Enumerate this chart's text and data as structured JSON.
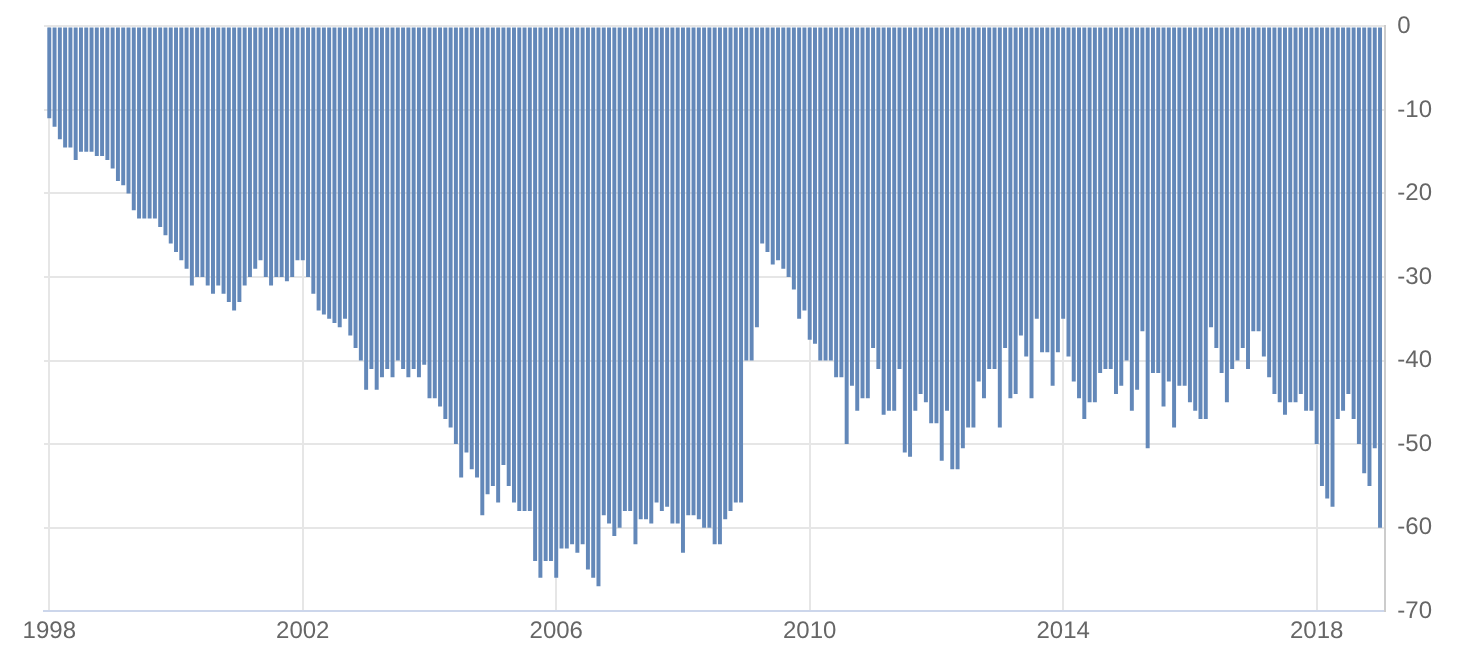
{
  "chart_data": {
    "type": "bar",
    "color": "#6388b9",
    "x": [
      "1998-01",
      "1998-02",
      "1998-03",
      "1998-04",
      "1998-05",
      "1998-06",
      "1998-07",
      "1998-08",
      "1998-09",
      "1998-10",
      "1998-11",
      "1998-12",
      "1999-01",
      "1999-02",
      "1999-03",
      "1999-04",
      "1999-05",
      "1999-06",
      "1999-07",
      "1999-08",
      "1999-09",
      "1999-10",
      "1999-11",
      "1999-12",
      "2000-01",
      "2000-02",
      "2000-03",
      "2000-04",
      "2000-05",
      "2000-06",
      "2000-07",
      "2000-08",
      "2000-09",
      "2000-10",
      "2000-11",
      "2000-12",
      "2001-01",
      "2001-02",
      "2001-03",
      "2001-04",
      "2001-05",
      "2001-06",
      "2001-07",
      "2001-08",
      "2001-09",
      "2001-10",
      "2001-11",
      "2001-12",
      "2002-01",
      "2002-02",
      "2002-03",
      "2002-04",
      "2002-05",
      "2002-06",
      "2002-07",
      "2002-08",
      "2002-09",
      "2002-10",
      "2002-11",
      "2002-12",
      "2003-01",
      "2003-02",
      "2003-03",
      "2003-04",
      "2003-05",
      "2003-06",
      "2003-07",
      "2003-08",
      "2003-09",
      "2003-10",
      "2003-11",
      "2003-12",
      "2004-01",
      "2004-02",
      "2004-03",
      "2004-04",
      "2004-05",
      "2004-06",
      "2004-07",
      "2004-08",
      "2004-09",
      "2004-10",
      "2004-11",
      "2004-12",
      "2005-01",
      "2005-02",
      "2005-03",
      "2005-04",
      "2005-05",
      "2005-06",
      "2005-07",
      "2005-08",
      "2005-09",
      "2005-10",
      "2005-11",
      "2005-12",
      "2006-01",
      "2006-02",
      "2006-03",
      "2006-04",
      "2006-05",
      "2006-06",
      "2006-07",
      "2006-08",
      "2006-09",
      "2006-10",
      "2006-11",
      "2006-12",
      "2007-01",
      "2007-02",
      "2007-03",
      "2007-04",
      "2007-05",
      "2007-06",
      "2007-07",
      "2007-08",
      "2007-09",
      "2007-10",
      "2007-11",
      "2007-12",
      "2008-01",
      "2008-02",
      "2008-03",
      "2008-04",
      "2008-05",
      "2008-06",
      "2008-07",
      "2008-08",
      "2008-09",
      "2008-10",
      "2008-11",
      "2008-12",
      "2009-01",
      "2009-02",
      "2009-03",
      "2009-04",
      "2009-05",
      "2009-06",
      "2009-07",
      "2009-08",
      "2009-09",
      "2009-10",
      "2009-11",
      "2009-12",
      "2010-01",
      "2010-02",
      "2010-03",
      "2010-04",
      "2010-05",
      "2010-06",
      "2010-07",
      "2010-08",
      "2010-09",
      "2010-10",
      "2010-11",
      "2010-12",
      "2011-01",
      "2011-02",
      "2011-03",
      "2011-04",
      "2011-05",
      "2011-06",
      "2011-07",
      "2011-08",
      "2011-09",
      "2011-10",
      "2011-11",
      "2011-12",
      "2012-01",
      "2012-02",
      "2012-03",
      "2012-04",
      "2012-05",
      "2012-06",
      "2012-07",
      "2012-08",
      "2012-09",
      "2012-10",
      "2012-11",
      "2012-12",
      "2013-01",
      "2013-02",
      "2013-03",
      "2013-04",
      "2013-05",
      "2013-06",
      "2013-07",
      "2013-08",
      "2013-09",
      "2013-10",
      "2013-11",
      "2013-12",
      "2014-01",
      "2014-02",
      "2014-03",
      "2014-04",
      "2014-05",
      "2014-06",
      "2014-07",
      "2014-08",
      "2014-09",
      "2014-10",
      "2014-11",
      "2014-12",
      "2015-01",
      "2015-02",
      "2015-03",
      "2015-04",
      "2015-05",
      "2015-06",
      "2015-07",
      "2015-08",
      "2015-09",
      "2015-10",
      "2015-11",
      "2015-12",
      "2016-01",
      "2016-02",
      "2016-03",
      "2016-04",
      "2016-05",
      "2016-06",
      "2016-07",
      "2016-08",
      "2016-09",
      "2016-10",
      "2016-11",
      "2016-12",
      "2017-01",
      "2017-02",
      "2017-03",
      "2017-04",
      "2017-05",
      "2017-06",
      "2017-07",
      "2017-08",
      "2017-09",
      "2017-10",
      "2017-11",
      "2017-12",
      "2018-01",
      "2018-02",
      "2018-03",
      "2018-04",
      "2018-05",
      "2018-06",
      "2018-07",
      "2018-08",
      "2018-09",
      "2018-10",
      "2018-11",
      "2018-12",
      "2019-01"
    ],
    "values": [
      -11,
      -12,
      -13.5,
      -14.5,
      -14.5,
      -16,
      -15,
      -15,
      -15,
      -15.5,
      -15.5,
      -16,
      -17,
      -18.5,
      -19,
      -20,
      -22,
      -23,
      -23,
      -23,
      -23,
      -24,
      -25,
      -26,
      -27,
      -28,
      -29,
      -31,
      -30,
      -30,
      -31,
      -32,
      -31,
      -32,
      -33,
      -34,
      -33,
      -31,
      -30,
      -29,
      -28,
      -30,
      -31,
      -30,
      -30,
      -30.5,
      -30,
      -28,
      -28,
      -30,
      -32,
      -34,
      -34.5,
      -35,
      -35.5,
      -36,
      -35,
      -37,
      -38.5,
      -40,
      -43.5,
      -41,
      -43.5,
      -42,
      -41,
      -42,
      -40,
      -41,
      -42,
      -41,
      -42,
      -40.5,
      -44.5,
      -44.5,
      -45.5,
      -47,
      -48,
      -50,
      -54,
      -51,
      -53,
      -54,
      -58.5,
      -56,
      -55,
      -57,
      -52.5,
      -55,
      -57,
      -58,
      -58,
      -58,
      -64,
      -66,
      -64,
      -64,
      -66,
      -62.5,
      -62.5,
      -62,
      -63,
      -62,
      -65,
      -66,
      -67,
      -58.5,
      -59.5,
      -61,
      -60,
      -58,
      -58,
      -62,
      -59,
      -59,
      -59.5,
      -57,
      -58,
      -57.5,
      -59.5,
      -59.5,
      -63,
      -58.5,
      -58.5,
      -59,
      -60,
      -60,
      -62,
      -62,
      -59,
      -58,
      -57,
      -57,
      -40,
      -40,
      -36,
      -26,
      -27,
      -28.5,
      -28,
      -29,
      -30,
      -31.5,
      -35,
      -34,
      -37.5,
      -38,
      -40,
      -40,
      -40,
      -42,
      -42,
      -50,
      -43,
      -46,
      -44.5,
      -44.5,
      -38.5,
      -41,
      -46.5,
      -46,
      -46,
      -41,
      -51,
      -51.5,
      -46,
      -44,
      -45,
      -47.5,
      -47.5,
      -52,
      -46,
      -53,
      -53,
      -50.5,
      -48,
      -48,
      -42.5,
      -44.5,
      -41,
      -41,
      -48,
      -38.5,
      -44.5,
      -44,
      -37,
      -39.5,
      -44.5,
      -35,
      -39,
      -39,
      -43,
      -39,
      -35,
      -39.5,
      -42.5,
      -44.5,
      -47,
      -45,
      -45,
      -41.5,
      -41,
      -41,
      -44,
      -43,
      -40,
      -46,
      -43.5,
      -36.5,
      -50.5,
      -41.5,
      -41.5,
      -45.5,
      -42.5,
      -48,
      -43,
      -43,
      -45,
      -46,
      -47,
      -47,
      -36,
      -38.5,
      -41.5,
      -45,
      -41,
      -40,
      -38.5,
      -41,
      -36.5,
      -36.5,
      -39.5,
      -42,
      -44,
      -45,
      -46.5,
      -45,
      -45,
      -44,
      -46,
      -46,
      -50,
      -55,
      -56.5,
      -57.5,
      -47,
      -46,
      -44,
      -47,
      -50,
      -53.5,
      -55,
      -50.5,
      -60
    ],
    "xlim": [
      "1997-12",
      "2019-02"
    ],
    "xticks": [
      "1998",
      "2002",
      "2006",
      "2010",
      "2014",
      "2018"
    ],
    "ylim": [
      -70,
      0
    ],
    "yticks": [
      0,
      -10,
      -20,
      -30,
      -40,
      -50,
      -60,
      -70
    ],
    "grid": true
  }
}
